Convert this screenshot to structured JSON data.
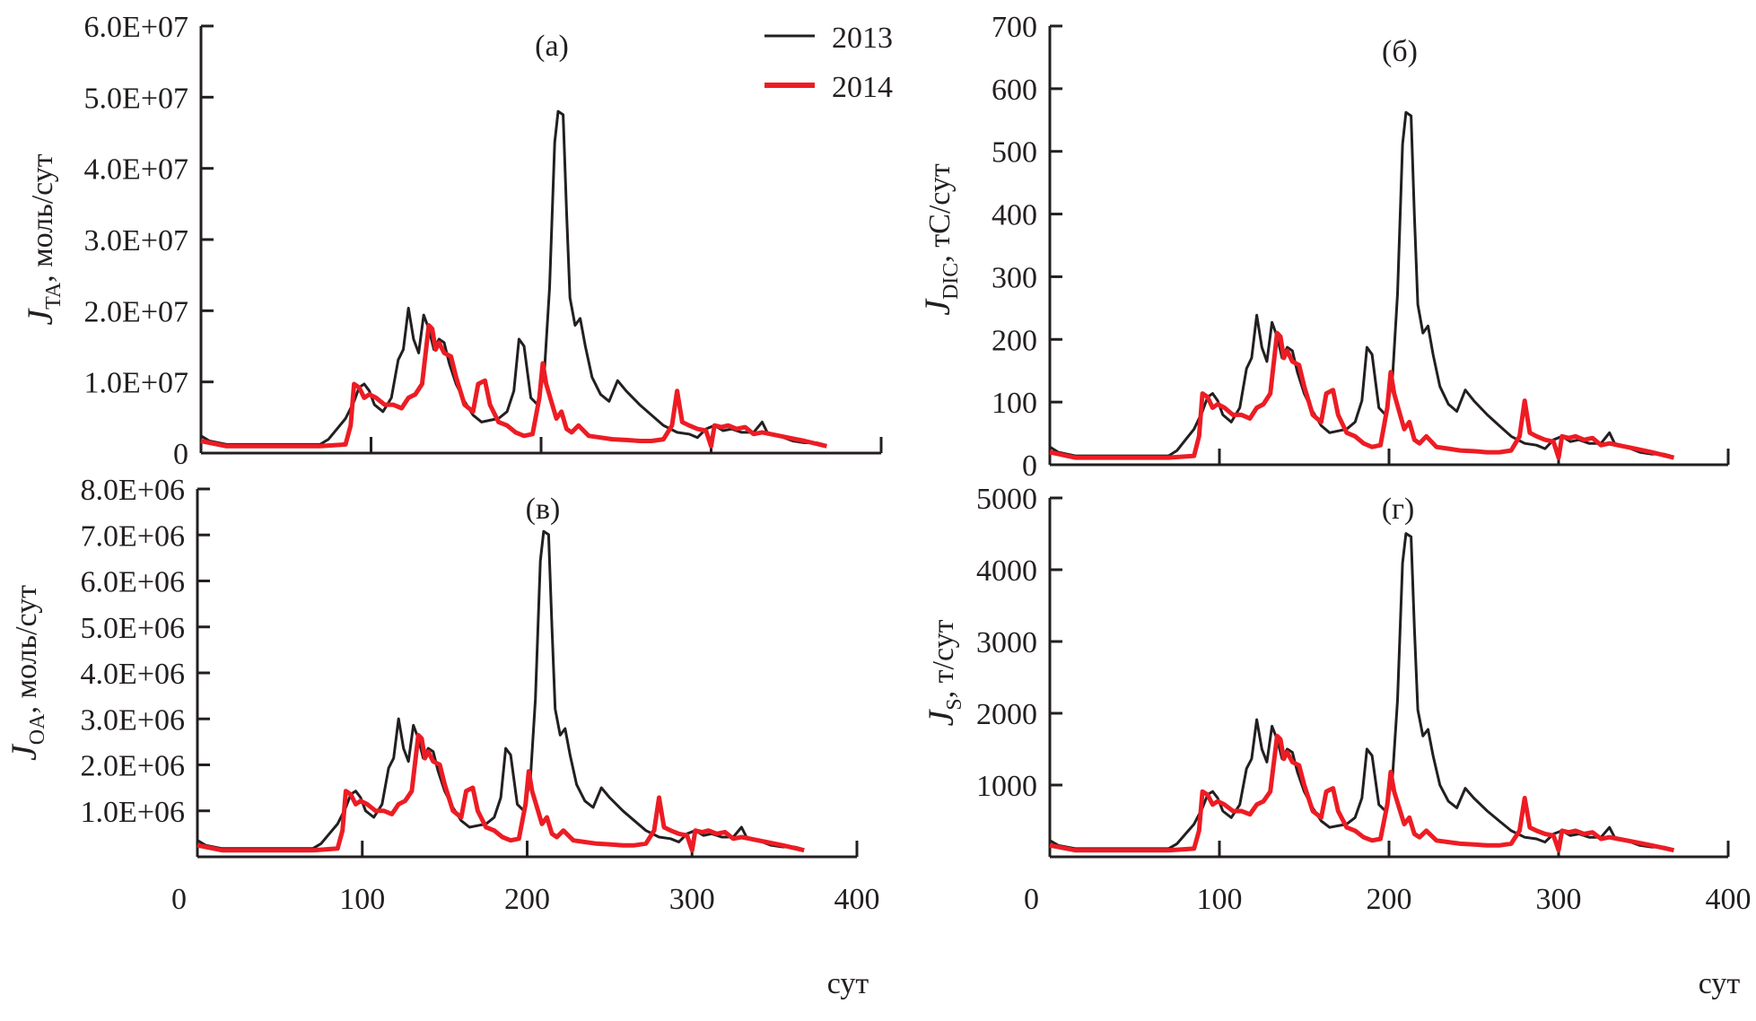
{
  "chart_data": [
    {
      "type": "line",
      "panel_label": "(а)",
      "ylabel_main": "J",
      "ylabel_sub": "TA",
      "ylabel_rest": ", моль/сут",
      "xlabel": "",
      "xlim": [
        0,
        400
      ],
      "ylim": [
        0,
        60000000
      ],
      "x_ticks": [
        0,
        100,
        200,
        300,
        400
      ],
      "x_tick_labels": [],
      "y_ticks": [
        0,
        10000000,
        20000000,
        30000000,
        40000000,
        50000000,
        60000000
      ],
      "y_tick_labels": [
        "0",
        "1.0E+07",
        "2.0E+07",
        "3.0E+07",
        "4.0E+07",
        "5.0E+07",
        "6.0E+07"
      ],
      "legend": {
        "position": "top-right",
        "entries": [
          "2013",
          "2014"
        ]
      },
      "scale": 48500000
    },
    {
      "type": "line",
      "panel_label": "(б)",
      "ylabel_main": "J",
      "ylabel_sub": "DIC",
      "ylabel_rest": ", тС/сут",
      "xlabel": "",
      "xlim": [
        0,
        400
      ],
      "ylim": [
        0,
        700
      ],
      "x_ticks": [
        0,
        100,
        200,
        300,
        400
      ],
      "x_tick_labels": [],
      "y_ticks": [
        0,
        100,
        200,
        300,
        400,
        500,
        600,
        700
      ],
      "y_tick_labels": [
        "0",
        "100",
        "200",
        "300",
        "400",
        "500",
        "600",
        "700"
      ],
      "scale": 568
    },
    {
      "type": "line",
      "panel_label": "(в)",
      "ylabel_main": "J",
      "ylabel_sub": "OA",
      "ylabel_rest": ", моль/сут",
      "xlabel": "сут",
      "xlim": [
        0,
        400
      ],
      "ylim": [
        0,
        8000000
      ],
      "x_ticks": [
        0,
        100,
        200,
        300,
        400
      ],
      "x_tick_labels": [
        "0",
        "100",
        "200",
        "300",
        "400"
      ],
      "y_ticks": [
        1000000,
        2000000,
        3000000,
        4000000,
        5000000,
        6000000,
        7000000,
        8000000
      ],
      "y_tick_labels": [
        "1.0E+06",
        "2.0E+06",
        "3.0E+06",
        "4.0E+06",
        "5.0E+06",
        "6.0E+06",
        "7.0E+06",
        "8.0E+06"
      ],
      "scale": 7150000
    },
    {
      "type": "line",
      "panel_label": "(г)",
      "ylabel_main": "J",
      "ylabel_sub": "S",
      "ylabel_rest": ", т/сут",
      "xlabel": "сут",
      "xlim": [
        0,
        400
      ],
      "ylim": [
        0,
        5000
      ],
      "x_ticks": [
        0,
        100,
        200,
        300,
        400
      ],
      "x_tick_labels": [
        "0",
        "100",
        "200",
        "300",
        "400"
      ],
      "y_ticks": [
        1000,
        2000,
        3000,
        4000,
        5000
      ],
      "y_tick_labels": [
        "1000",
        "2000",
        "3000",
        "4000",
        "5000"
      ],
      "scale": 4550
    }
  ],
  "series_shapes": {
    "note": "x = day of year; relative values (fraction of panel peak)",
    "2013": {
      "name": "2013",
      "color": "#231f20",
      "x": [
        0,
        5,
        15,
        30,
        50,
        70,
        75,
        80,
        85,
        90,
        93,
        96,
        99,
        102,
        107,
        112,
        116,
        119,
        122,
        125,
        128,
        131,
        134,
        137,
        140,
        143,
        146,
        150,
        155,
        160,
        165,
        170,
        175,
        180,
        184,
        187,
        190,
        194,
        198,
        202,
        205,
        208,
        210,
        213,
        215,
        217,
        220,
        223,
        226,
        230,
        235,
        240,
        245,
        250,
        258,
        265,
        272,
        280,
        287,
        292,
        297,
        302,
        307,
        312,
        318,
        325,
        330,
        333,
        340,
        348,
        355,
        362,
        366
      ],
      "rel": [
        0.05,
        0.035,
        0.025,
        0.025,
        0.025,
        0.025,
        0.04,
        0.07,
        0.1,
        0.15,
        0.19,
        0.2,
        0.18,
        0.14,
        0.12,
        0.16,
        0.27,
        0.3,
        0.42,
        0.33,
        0.29,
        0.4,
        0.36,
        0.3,
        0.33,
        0.32,
        0.26,
        0.2,
        0.15,
        0.11,
        0.09,
        0.095,
        0.1,
        0.12,
        0.18,
        0.33,
        0.31,
        0.16,
        0.14,
        0.24,
        0.48,
        0.9,
        0.99,
        0.98,
        0.7,
        0.45,
        0.37,
        0.39,
        0.31,
        0.22,
        0.17,
        0.15,
        0.21,
        0.18,
        0.14,
        0.11,
        0.08,
        0.06,
        0.055,
        0.045,
        0.07,
        0.08,
        0.065,
        0.07,
        0.06,
        0.06,
        0.09,
        0.06,
        0.05,
        0.035,
        0.03,
        0.03,
        0.025
      ]
    },
    "2014": {
      "name": "2014",
      "color": "#ed1c24",
      "x": [
        0,
        5,
        15,
        30,
        50,
        70,
        85,
        88,
        90,
        93,
        96,
        99,
        103,
        108,
        113,
        118,
        122,
        126,
        130,
        134,
        136,
        138,
        140,
        143,
        147,
        150,
        155,
        160,
        163,
        167,
        170,
        175,
        180,
        185,
        190,
        195,
        199,
        201,
        203,
        206,
        209,
        212,
        215,
        218,
        222,
        228,
        235,
        242,
        250,
        258,
        265,
        272,
        277,
        280,
        283,
        287,
        292,
        297,
        300,
        302,
        306,
        310,
        315,
        320,
        325,
        330,
        335,
        345,
        355,
        368
      ],
      "rel": [
        0.035,
        0.03,
        0.02,
        0.02,
        0.02,
        0.02,
        0.025,
        0.08,
        0.2,
        0.19,
        0.16,
        0.17,
        0.16,
        0.14,
        0.14,
        0.13,
        0.16,
        0.17,
        0.2,
        0.37,
        0.36,
        0.3,
        0.32,
        0.29,
        0.28,
        0.22,
        0.14,
        0.12,
        0.2,
        0.21,
        0.14,
        0.09,
        0.08,
        0.06,
        0.05,
        0.055,
        0.16,
        0.26,
        0.2,
        0.15,
        0.1,
        0.12,
        0.07,
        0.06,
        0.08,
        0.05,
        0.045,
        0.04,
        0.038,
        0.035,
        0.035,
        0.04,
        0.08,
        0.18,
        0.09,
        0.08,
        0.07,
        0.065,
        0.02,
        0.08,
        0.075,
        0.08,
        0.07,
        0.075,
        0.055,
        0.06,
        0.055,
        0.045,
        0.035,
        0.02
      ]
    }
  },
  "legend": {
    "entries": [
      {
        "label": "2013",
        "color": "#231f20"
      },
      {
        "label": "2014",
        "color": "#ed1c24"
      }
    ]
  }
}
